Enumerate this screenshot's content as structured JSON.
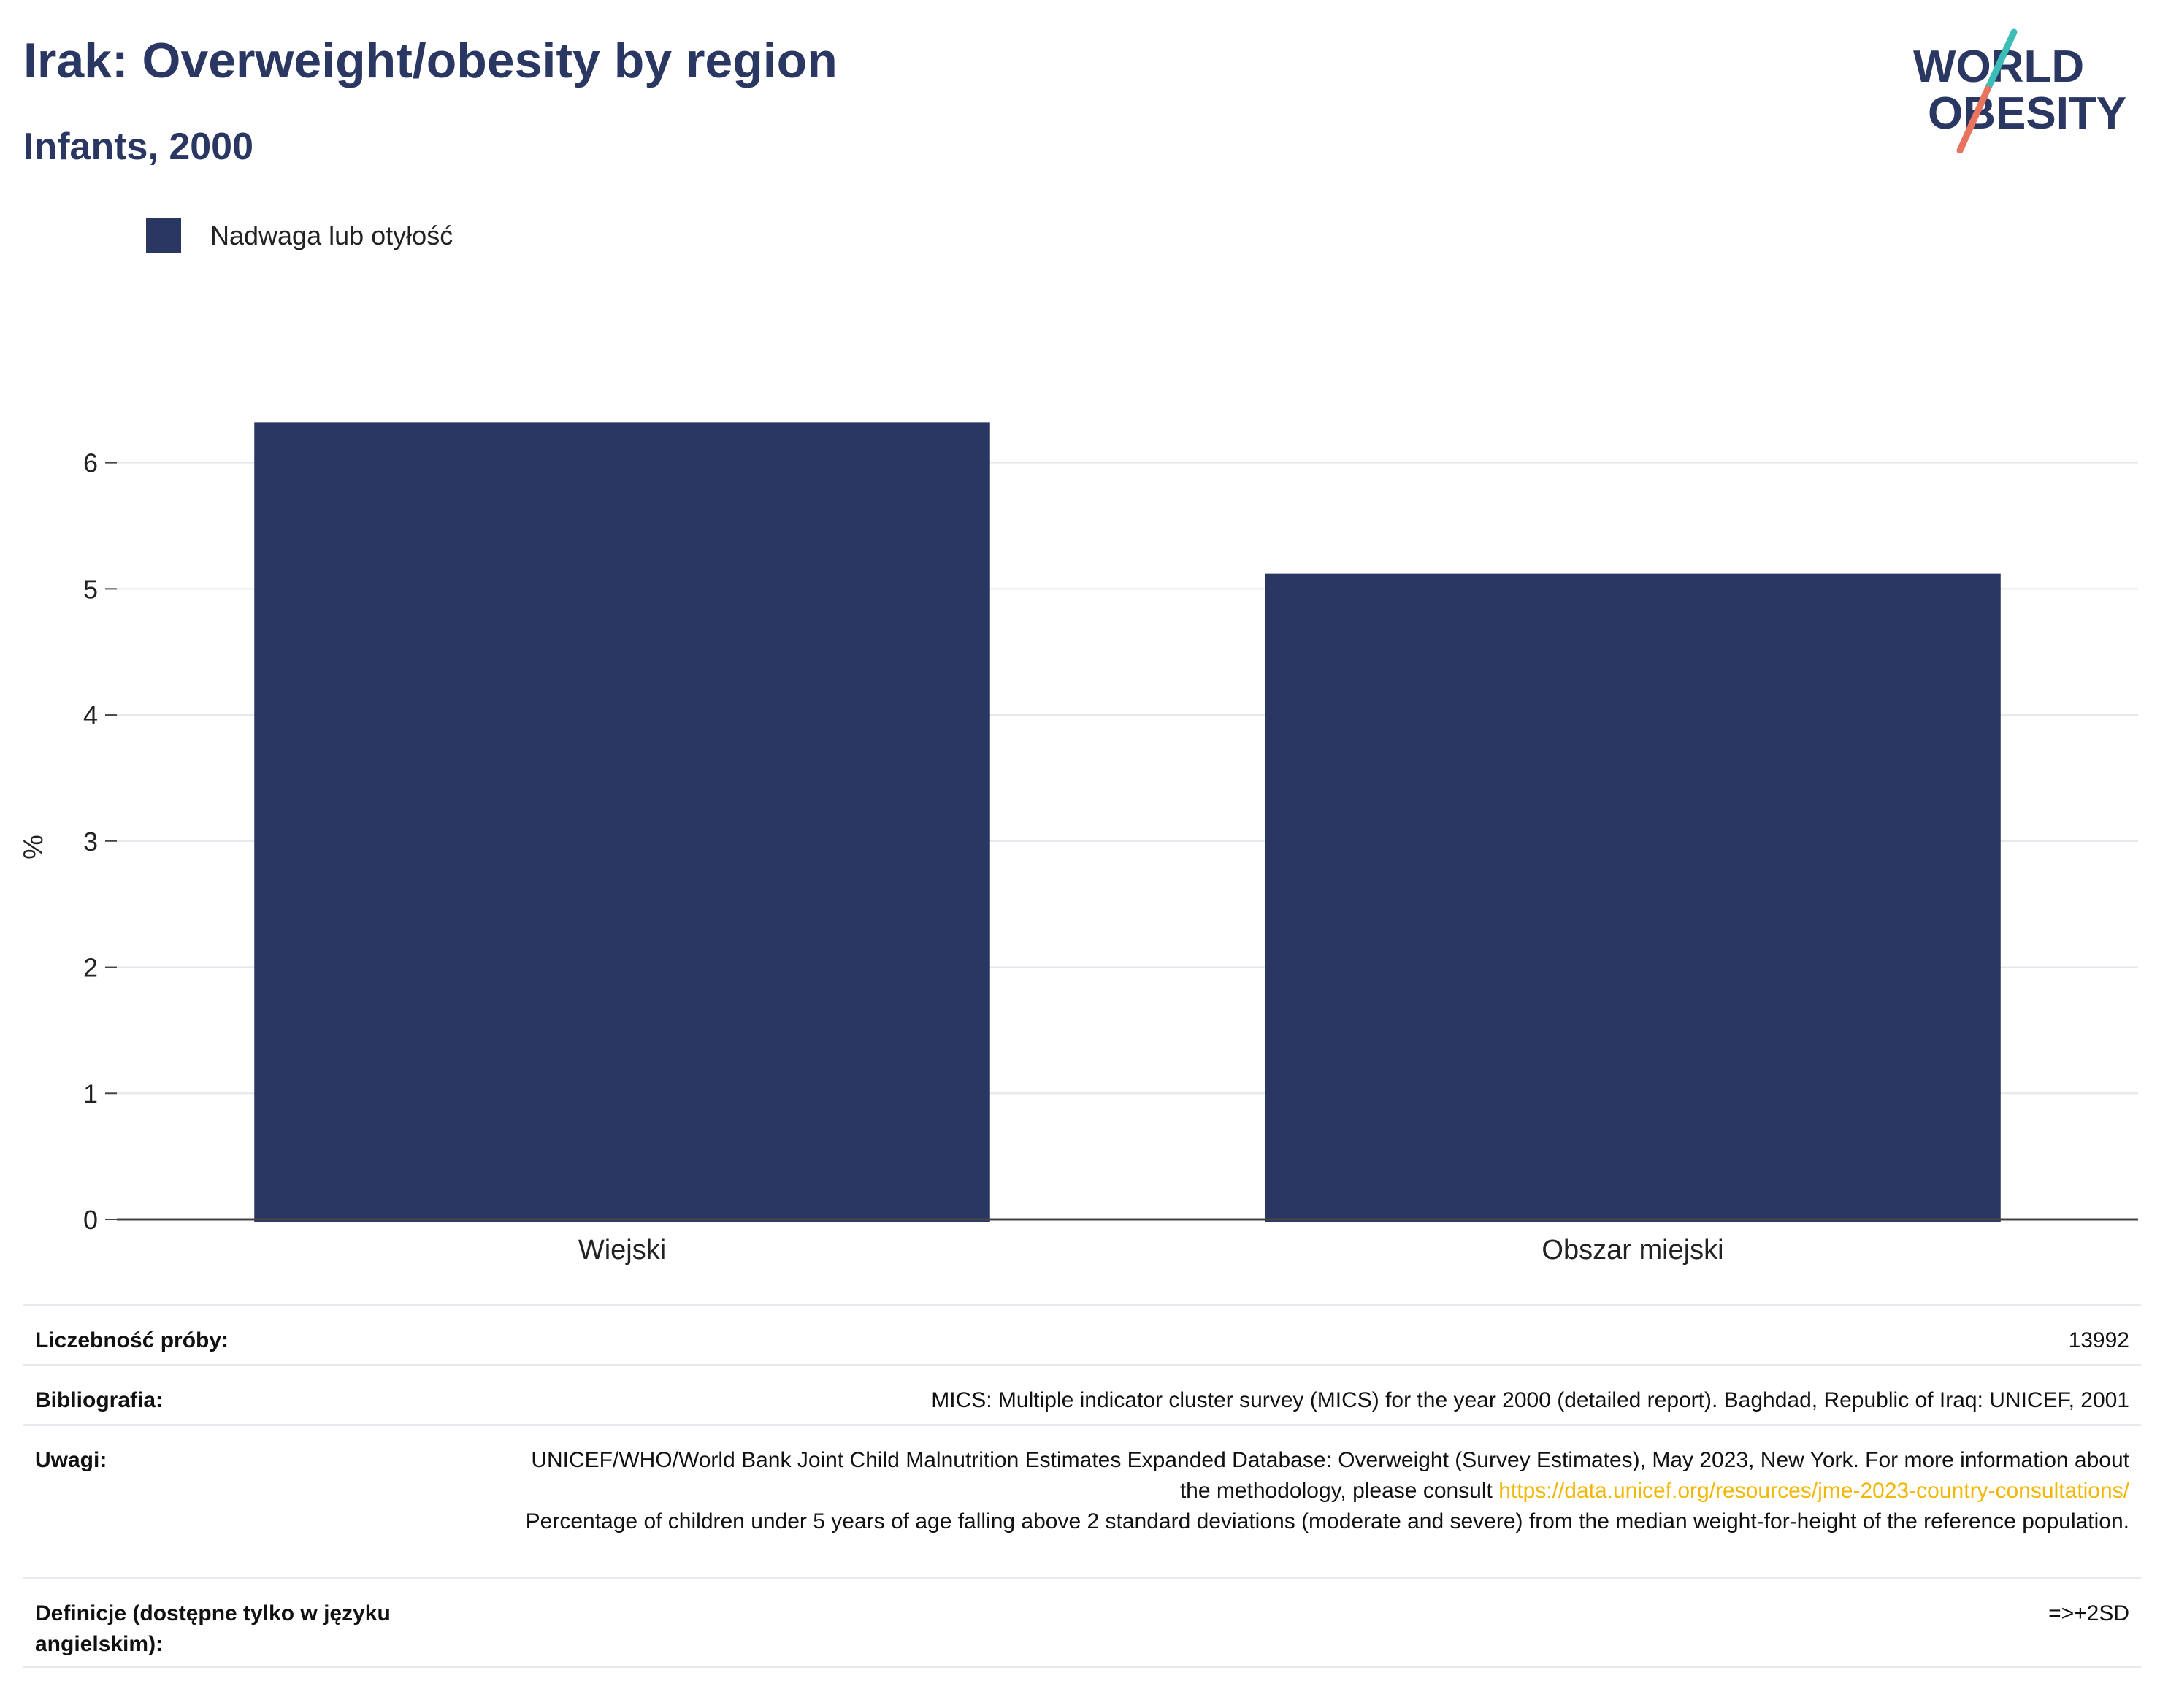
{
  "header": {
    "title": "Irak: Overweight/obesity by region",
    "subtitle": "Infants, 2000"
  },
  "logo": {
    "line1": "WORLD",
    "line2": "OBESITY",
    "colors": {
      "navy": "#2b3763",
      "teal": "#3dbdb8",
      "coral": "#e8735e"
    }
  },
  "legend": {
    "label": "Nadwaga lub otyłość",
    "color": "#2b3763"
  },
  "chart_data": {
    "type": "bar",
    "categories": [
      "Wiejski",
      "Obszar miejski"
    ],
    "series": [
      {
        "name": "Nadwaga lub otyłość",
        "values": [
          6.32,
          5.12
        ],
        "color": "#2b3763"
      }
    ],
    "title": "Irak: Overweight/obesity by region",
    "subtitle": "Infants, 2000",
    "xlabel": "",
    "ylabel": "%",
    "ylim": [
      0,
      6.6
    ],
    "yticks": [
      0,
      1,
      2,
      3,
      4,
      5,
      6
    ],
    "grid": true,
    "legend_position": "top-left"
  },
  "meta": {
    "sample_size_label": "Liczebność próby:",
    "sample_size_value": "13992",
    "bibliography_label": "Bibliografia:",
    "bibliography_value": "MICS: Multiple indicator cluster survey (MICS) for the year 2000 (detailed report). Baghdad, Republic of Iraq: UNICEF, 2001",
    "notes_label": "Uwagi:",
    "notes_text_1": "UNICEF/WHO/World Bank Joint Child Malnutrition Estimates Expanded Database: Overweight (Survey Estimates), May 2023, New York. For more information about the methodology, please consult",
    "notes_link": "https://data.unicef.org/resources/jme-2023-country-consultations/",
    "notes_text_2": "Percentage of children under 5 years of age falling above 2 standard deviations (moderate and severe) from the median weight-for-height of the reference population.",
    "definitions_label": "Definicje (dostępne tylko w języku angielskim):",
    "definitions_value": "=>+2SD"
  }
}
